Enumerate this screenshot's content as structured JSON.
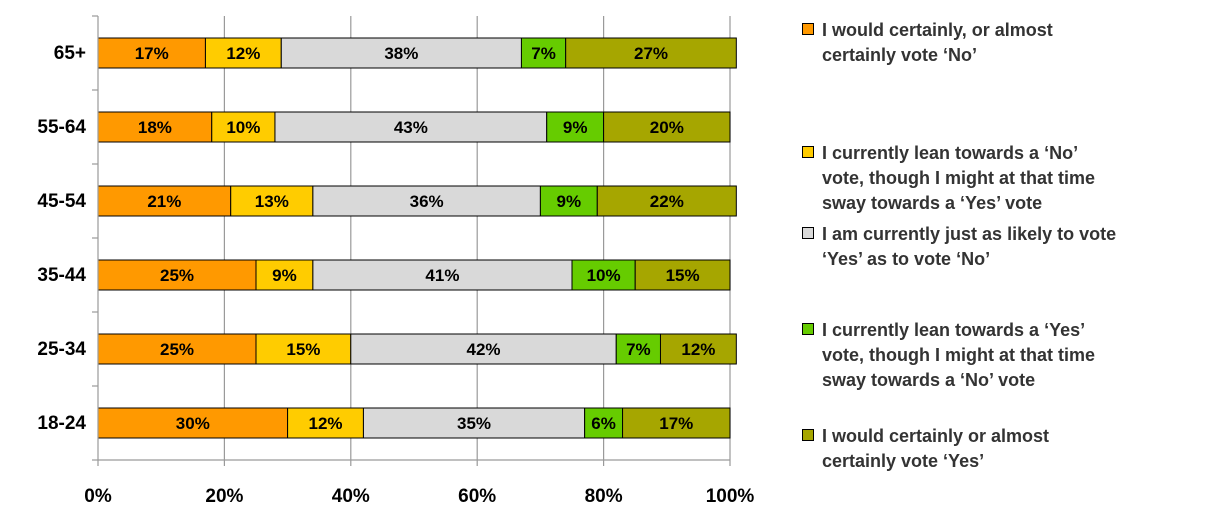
{
  "chart_data": {
    "type": "bar",
    "orientation": "horizontal",
    "stacked": true,
    "categories": [
      "65+",
      "55-64",
      "45-54",
      "35-44",
      "25-34",
      "18-24"
    ],
    "series": [
      {
        "name": "I would certainly, or almost certainly vote ‘No’",
        "color": "#FF9900",
        "values": [
          17,
          18,
          21,
          25,
          25,
          30
        ],
        "labels": [
          "17%",
          "18%",
          "21%",
          "25%",
          "25%",
          "30%"
        ]
      },
      {
        "name": "I currently lean towards a ‘No’ vote, though I might at that time sway towards a ‘Yes’ vote",
        "color": "#FFCC00",
        "values": [
          12,
          10,
          13,
          9,
          15,
          12
        ],
        "labels": [
          "12%",
          "10%",
          "13%",
          "9%",
          "15%",
          "12%"
        ]
      },
      {
        "name": "I am currently just as likely to vote ‘Yes’ as to vote ‘No’",
        "color": "#D9D9D9",
        "values": [
          38,
          43,
          36,
          41,
          42,
          35
        ],
        "labels": [
          "38%",
          "43%",
          "36%",
          "41%",
          "42%",
          "35%"
        ]
      },
      {
        "name": "I currently lean towards a ‘Yes’ vote, though I might at that time sway towards a ‘No’ vote",
        "color": "#66CC00",
        "values": [
          7,
          9,
          9,
          10,
          7,
          6
        ],
        "labels": [
          "7%",
          "9%",
          "9%",
          "10%",
          "7%",
          "6%"
        ]
      },
      {
        "name": "I would certainly or almost certainly vote ‘Yes’",
        "color": "#A6A600",
        "values": [
          27,
          20,
          22,
          15,
          12,
          17
        ],
        "labels": [
          "27%",
          "20%",
          "22%",
          "15%",
          "12%",
          "17%"
        ]
      }
    ],
    "xlim": [
      0,
      100
    ],
    "x_ticks": [
      "0%",
      "20%",
      "40%",
      "60%",
      "80%",
      "100%"
    ],
    "grid": true,
    "legend_position": "right"
  },
  "legend": {
    "items": [
      {
        "label": "I would certainly, or almost\ncertainly vote ‘No’",
        "color": "#FF9900"
      },
      {
        "label": "I currently lean towards a ‘No’\nvote, though I might at that time\nsway towards a ‘Yes’ vote",
        "color": "#FFCC00"
      },
      {
        "label": "I am currently just as likely to vote\n‘Yes’ as to vote ‘No’",
        "color": "#D9D9D9"
      },
      {
        "label": "I currently lean towards a ‘Yes’\nvote, though I might at that time\nsway towards a ‘No’ vote",
        "color": "#66CC00"
      },
      {
        "label": "I would certainly or almost\ncertainly vote ‘Yes’",
        "color": "#A6A600"
      }
    ]
  }
}
